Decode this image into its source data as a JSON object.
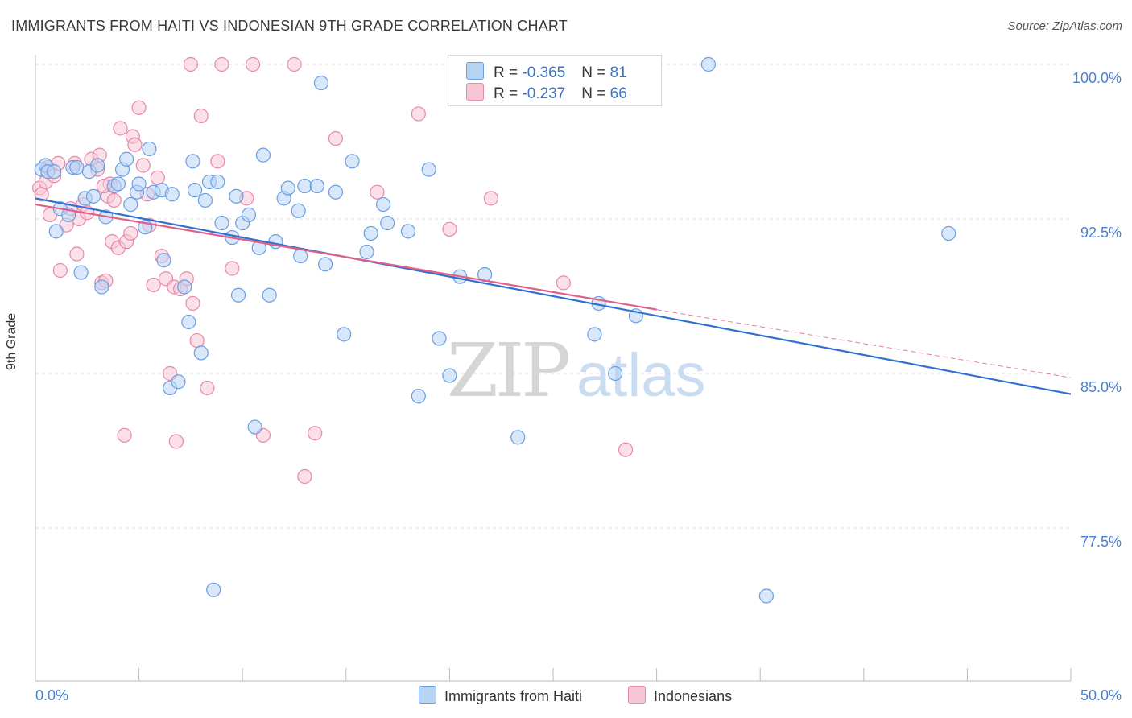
{
  "header": {
    "title": "IMMIGRANTS FROM HAITI VS INDONESIAN 9TH GRADE CORRELATION CHART",
    "source": "Source: ZipAtlas.com"
  },
  "watermark": {
    "zip": "ZIP",
    "atlas": "atlas"
  },
  "legend": {
    "rows": [
      {
        "r_label": "R = ",
        "r_value": "-0.365",
        "n_label": "N = ",
        "n_value": "81"
      },
      {
        "r_label": "R = ",
        "r_value": "-0.237",
        "n_label": "N = ",
        "n_value": "66"
      }
    ]
  },
  "bottom_legend": [
    "Immigrants from Haiti",
    "Indonesians"
  ],
  "colors": {
    "haiti_fill": "#b8d4f5",
    "haiti_stroke": "#6a9ee0",
    "haiti_line": "#3070d0",
    "indo_fill": "#f7c6d6",
    "indo_stroke": "#e888a8",
    "indo_line": "#e0608a",
    "tick_label": "#4a7fd0",
    "grid": "#e2e2e2"
  },
  "chart_data": {
    "type": "scatter",
    "title": "IMMIGRANTS FROM HAITI VS INDONESIAN 9TH GRADE CORRELATION CHART",
    "xlabel": "",
    "ylabel": "9th Grade",
    "xlim": [
      0,
      50
    ],
    "ylim": [
      70.8,
      101.5
    ],
    "x_tick_labels": [
      "0.0%",
      "50.0%"
    ],
    "y_ticks": [
      77.5,
      85.0,
      92.5,
      100.0
    ],
    "y_tick_labels": [
      "77.5%",
      "85.0%",
      "92.5%",
      "100.0%"
    ],
    "grid": "horizontal dashed",
    "series": [
      {
        "name": "Immigrants from Haiti",
        "r": -0.365,
        "n": 81,
        "trend": {
          "x": [
            0,
            50
          ],
          "y": [
            93.5,
            84.0
          ]
        },
        "points": [
          [
            0.3,
            94.9
          ],
          [
            0.5,
            95.1
          ],
          [
            0.6,
            94.8
          ],
          [
            0.9,
            94.8
          ],
          [
            1.2,
            93.0
          ],
          [
            1.0,
            91.9
          ],
          [
            1.6,
            92.7
          ],
          [
            1.8,
            95.0
          ],
          [
            2.0,
            95.0
          ],
          [
            2.2,
            89.9
          ],
          [
            2.4,
            93.5
          ],
          [
            2.6,
            94.8
          ],
          [
            2.8,
            93.6
          ],
          [
            3.0,
            95.1
          ],
          [
            3.2,
            89.2
          ],
          [
            3.4,
            92.6
          ],
          [
            3.8,
            94.1
          ],
          [
            4.0,
            94.2
          ],
          [
            4.2,
            94.9
          ],
          [
            4.4,
            95.4
          ],
          [
            4.6,
            93.2
          ],
          [
            4.9,
            93.8
          ],
          [
            5.0,
            94.2
          ],
          [
            5.3,
            92.1
          ],
          [
            5.5,
            95.9
          ],
          [
            5.7,
            93.8
          ],
          [
            6.1,
            93.9
          ],
          [
            6.2,
            90.5
          ],
          [
            6.5,
            84.3
          ],
          [
            6.6,
            93.7
          ],
          [
            6.9,
            84.6
          ],
          [
            7.2,
            89.2
          ],
          [
            7.4,
            87.5
          ],
          [
            7.6,
            95.3
          ],
          [
            7.7,
            93.9
          ],
          [
            8.0,
            86.0
          ],
          [
            8.2,
            93.4
          ],
          [
            8.4,
            94.3
          ],
          [
            8.6,
            74.5
          ],
          [
            8.8,
            94.3
          ],
          [
            9.0,
            92.3
          ],
          [
            9.5,
            91.6
          ],
          [
            9.7,
            93.6
          ],
          [
            9.8,
            88.8
          ],
          [
            10.0,
            92.3
          ],
          [
            10.3,
            92.7
          ],
          [
            10.8,
            91.1
          ],
          [
            11.0,
            95.6
          ],
          [
            11.3,
            88.8
          ],
          [
            11.6,
            91.4
          ],
          [
            12.0,
            93.5
          ],
          [
            12.2,
            94.0
          ],
          [
            12.7,
            92.9
          ],
          [
            12.8,
            90.7
          ],
          [
            13.0,
            94.1
          ],
          [
            13.6,
            94.1
          ],
          [
            13.8,
            99.1
          ],
          [
            14.0,
            90.3
          ],
          [
            14.5,
            93.8
          ],
          [
            14.9,
            86.9
          ],
          [
            15.3,
            95.3
          ],
          [
            16.0,
            90.9
          ],
          [
            16.2,
            91.8
          ],
          [
            16.8,
            93.2
          ],
          [
            17.0,
            92.3
          ],
          [
            18.0,
            91.9
          ],
          [
            18.5,
            83.9
          ],
          [
            19.0,
            94.9
          ],
          [
            19.5,
            86.7
          ],
          [
            20.0,
            84.9
          ],
          [
            20.5,
            89.7
          ],
          [
            21.7,
            89.8
          ],
          [
            23.3,
            81.9
          ],
          [
            27.0,
            86.9
          ],
          [
            27.2,
            88.4
          ],
          [
            28.0,
            85.0
          ],
          [
            29.0,
            87.8
          ],
          [
            32.5,
            100.0
          ],
          [
            35.3,
            74.2
          ],
          [
            44.1,
            91.8
          ],
          [
            10.6,
            82.4
          ]
        ]
      },
      {
        "name": "Indonesians",
        "r": -0.237,
        "n": 66,
        "trend": {
          "x": [
            0,
            30
          ],
          "y": [
            93.2,
            88.1
          ]
        },
        "trend_dashed": {
          "x": [
            30,
            50
          ],
          "y": [
            88.1,
            84.8
          ]
        },
        "points": [
          [
            0.2,
            94.0
          ],
          [
            0.3,
            93.7
          ],
          [
            0.5,
            94.3
          ],
          [
            0.6,
            95.0
          ],
          [
            0.7,
            92.7
          ],
          [
            0.9,
            94.6
          ],
          [
            1.1,
            95.2
          ],
          [
            1.2,
            90.0
          ],
          [
            1.5,
            92.2
          ],
          [
            1.7,
            93.0
          ],
          [
            1.9,
            95.2
          ],
          [
            2.0,
            90.8
          ],
          [
            2.1,
            92.5
          ],
          [
            2.3,
            93.2
          ],
          [
            2.5,
            92.8
          ],
          [
            2.7,
            95.4
          ],
          [
            3.0,
            94.9
          ],
          [
            3.1,
            95.6
          ],
          [
            3.2,
            89.4
          ],
          [
            3.4,
            89.5
          ],
          [
            3.5,
            93.6
          ],
          [
            3.6,
            94.2
          ],
          [
            3.7,
            91.4
          ],
          [
            3.8,
            93.4
          ],
          [
            4.0,
            91.1
          ],
          [
            4.1,
            96.9
          ],
          [
            4.4,
            91.4
          ],
          [
            4.6,
            91.8
          ],
          [
            4.7,
            96.5
          ],
          [
            4.8,
            96.1
          ],
          [
            5.0,
            97.9
          ],
          [
            5.2,
            95.1
          ],
          [
            5.4,
            93.7
          ],
          [
            5.5,
            92.2
          ],
          [
            5.7,
            89.3
          ],
          [
            5.9,
            94.5
          ],
          [
            6.1,
            90.7
          ],
          [
            6.3,
            89.6
          ],
          [
            6.5,
            85.0
          ],
          [
            6.7,
            89.2
          ],
          [
            7.0,
            89.1
          ],
          [
            7.3,
            89.6
          ],
          [
            7.6,
            88.4
          ],
          [
            7.8,
            86.6
          ],
          [
            8.0,
            97.5
          ],
          [
            8.3,
            84.3
          ],
          [
            8.8,
            95.3
          ],
          [
            9.5,
            90.1
          ],
          [
            10.2,
            93.5
          ],
          [
            10.5,
            100.0
          ],
          [
            11.0,
            82.0
          ],
          [
            12.5,
            100.0
          ],
          [
            13.0,
            80.0
          ],
          [
            13.5,
            82.1
          ],
          [
            14.5,
            96.4
          ],
          [
            16.5,
            93.8
          ],
          [
            18.5,
            97.6
          ],
          [
            20.0,
            92.0
          ],
          [
            22.0,
            93.5
          ],
          [
            25.5,
            89.4
          ],
          [
            28.5,
            81.3
          ],
          [
            7.5,
            100.0
          ],
          [
            4.3,
            82.0
          ],
          [
            6.8,
            81.7
          ],
          [
            9.0,
            100.0
          ],
          [
            3.3,
            94.1
          ]
        ]
      }
    ]
  }
}
